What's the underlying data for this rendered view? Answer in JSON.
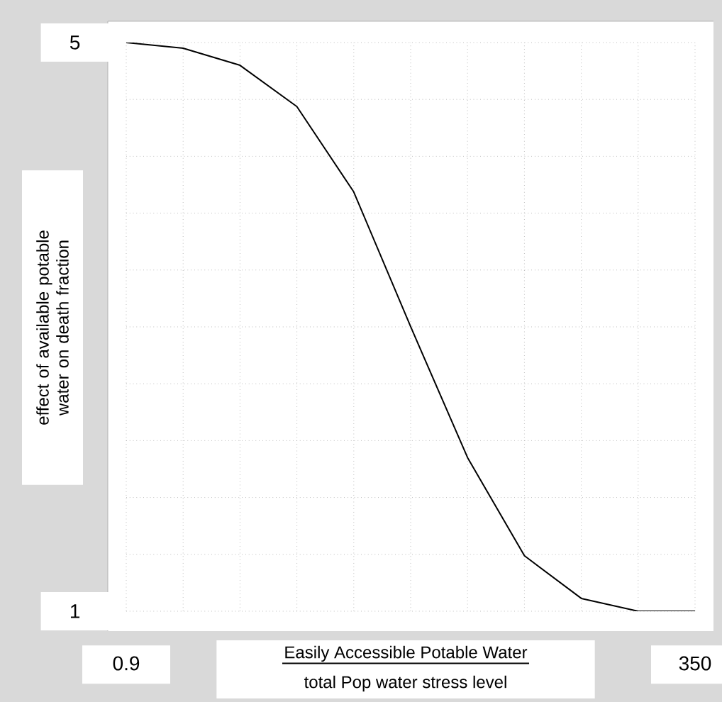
{
  "chart_data": {
    "type": "line",
    "xlabel": "Easily Accessible Potable Water",
    "ylabel": "effect of available potable water on death fraction",
    "annotations": [
      "total Pop water stress level"
    ],
    "x": [
      0.9,
      35.8,
      70.7,
      105.6,
      140.5,
      175.5,
      210.4,
      245.3,
      280.2,
      315.1,
      350
    ],
    "series": [
      {
        "color": "#000000",
        "values": [
          5.0,
          4.96,
          4.84,
          4.55,
          3.95,
          3.0,
          2.08,
          1.39,
          1.09,
          1.0,
          1.0
        ]
      }
    ],
    "xlim": [
      0.9,
      350
    ],
    "ylim": [
      1,
      5
    ],
    "xticks": [
      0.9,
      350
    ],
    "yticks": [
      1,
      5
    ],
    "grid": true,
    "marker": "none",
    "line_style": "solid"
  }
}
